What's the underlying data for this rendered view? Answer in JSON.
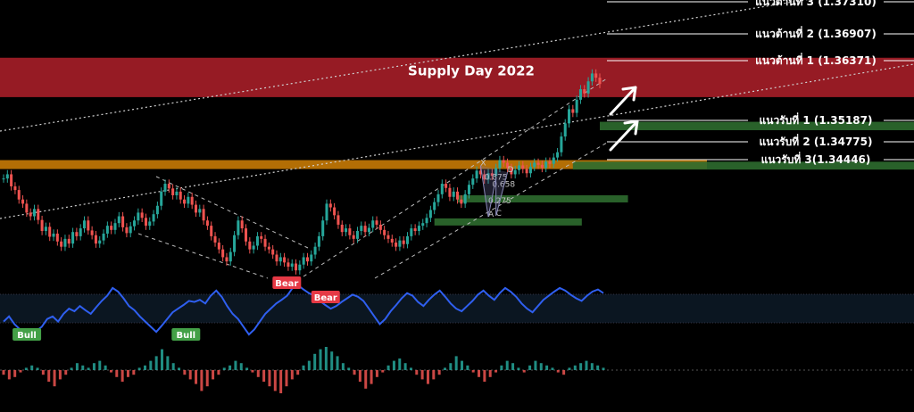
{
  "chart_data": {
    "type": "line",
    "symbol_note": "",
    "supply_zone": {
      "label": "Supply Day  2022",
      "from": 1.3575,
      "to": 1.3625,
      "color": "#b0202a"
    },
    "orange_zone": {
      "from": 1.3441,
      "to": 1.3455,
      "color": "#c77a06"
    },
    "demand_zones": [
      {
        "from": 1.3512,
        "to": 1.3528,
        "start": 155,
        "end": 200,
        "color": "#2d6b2f"
      },
      {
        "from": 1.3437,
        "to": 1.3452,
        "start": 148,
        "end": 200,
        "color": "#2d6b2f"
      },
      {
        "from": 1.3376,
        "to": 1.3388,
        "start": 118,
        "end": 160,
        "color": "#2d6b2f"
      },
      {
        "from": 1.3332,
        "to": 1.3344,
        "start": 112,
        "end": 148,
        "color": "#2d6b2f"
      }
    ],
    "resistance_levels": [
      {
        "label": "แนวต้านที่ 3 (1.37310)",
        "value": 1.3731
      },
      {
        "label": "แนวต้านที่ 2 (1.36907)",
        "value": 1.36907
      },
      {
        "label": "แนวต้านที่ 1 (1.36371)",
        "value": 1.36371
      }
    ],
    "support_levels": [
      {
        "label": "แนวรับที่ 1 (1.35187)",
        "value": 1.35187
      },
      {
        "label": "แนวรับที่ 2 (1.34775)",
        "value": 1.34775
      },
      {
        "label": "แนวรับที่ 3(1.34446)",
        "value": 1.34446
      }
    ],
    "price_series": [
      1.342,
      1.3428,
      1.3405,
      1.3398,
      1.338,
      1.3372,
      1.3355,
      1.3348,
      1.3362,
      1.3341,
      1.332,
      1.3328,
      1.3309,
      1.3315,
      1.33,
      1.329,
      1.3305,
      1.3296,
      1.3318,
      1.331,
      1.3325,
      1.334,
      1.3321,
      1.3312,
      1.3296,
      1.3302,
      1.3315,
      1.333,
      1.3322,
      1.3335,
      1.3348,
      1.3327,
      1.3316,
      1.3329,
      1.334,
      1.3355,
      1.3345,
      1.333,
      1.3338,
      1.3352,
      1.3368,
      1.3395,
      1.341,
      1.3401,
      1.3388,
      1.3395,
      1.338,
      1.3372,
      1.3385,
      1.337,
      1.3355,
      1.3362,
      1.334,
      1.333,
      1.331,
      1.3298,
      1.3285,
      1.327,
      1.3262,
      1.328,
      1.3312,
      1.334,
      1.3325,
      1.33,
      1.3285,
      1.3292,
      1.331,
      1.3305,
      1.329,
      1.3285,
      1.3275,
      1.3262,
      1.327,
      1.326,
      1.3252,
      1.3258,
      1.3245,
      1.3256,
      1.327,
      1.3262,
      1.3275,
      1.329,
      1.331,
      1.334,
      1.3372,
      1.3365,
      1.335,
      1.3332,
      1.3318,
      1.3325,
      1.3312,
      1.3305,
      1.332,
      1.333,
      1.3318,
      1.3326,
      1.334,
      1.3332,
      1.3322,
      1.3312,
      1.3305,
      1.3298,
      1.329,
      1.3302,
      1.3295,
      1.331,
      1.3325,
      1.332,
      1.333,
      1.3335,
      1.3345,
      1.336,
      1.3375,
      1.339,
      1.341,
      1.3402,
      1.3385,
      1.3395,
      1.338,
      1.3372,
      1.339,
      1.3408,
      1.342,
      1.3435,
      1.3428,
      1.3418,
      1.343,
      1.3425,
      1.344,
      1.3455,
      1.345,
      1.344,
      1.3428,
      1.3436,
      1.3445,
      1.3438,
      1.343,
      1.3442,
      1.345,
      1.3446,
      1.344,
      1.3452,
      1.3448,
      1.346,
      1.347,
      1.35,
      1.3525,
      1.3552,
      1.3545,
      1.357,
      1.359,
      1.3582,
      1.3605,
      1.362,
      1.3612,
      1.36
    ],
    "price_ylim": [
      1.323,
      1.376
    ],
    "indicator_series": [
      0.3,
      0.4,
      0.25,
      0.15,
      0.1,
      0.05,
      0.12,
      0.2,
      0.35,
      0.4,
      0.3,
      0.45,
      0.55,
      0.5,
      0.6,
      0.52,
      0.45,
      0.58,
      0.7,
      0.8,
      0.95,
      0.88,
      0.75,
      0.6,
      0.52,
      0.4,
      0.3,
      0.2,
      0.1,
      0.22,
      0.35,
      0.48,
      0.55,
      0.62,
      0.7,
      0.68,
      0.72,
      0.65,
      0.8,
      0.9,
      0.78,
      0.6,
      0.45,
      0.35,
      0.2,
      0.05,
      0.15,
      0.3,
      0.45,
      0.55,
      0.65,
      0.72,
      0.8,
      0.95,
      1.0,
      0.92,
      0.85,
      0.8,
      0.7,
      0.62,
      0.55,
      0.6,
      0.68,
      0.75,
      0.82,
      0.78,
      0.7,
      0.55,
      0.4,
      0.25,
      0.35,
      0.5,
      0.62,
      0.75,
      0.85,
      0.8,
      0.68,
      0.6,
      0.72,
      0.82,
      0.9,
      0.78,
      0.65,
      0.55,
      0.5,
      0.6,
      0.7,
      0.82,
      0.9,
      0.8,
      0.72,
      0.85,
      0.95,
      0.88,
      0.78,
      0.65,
      0.55,
      0.48,
      0.6,
      0.72,
      0.8,
      0.88,
      0.95,
      0.9,
      0.82,
      0.75,
      0.7,
      0.8,
      0.88,
      0.92,
      0.85
    ],
    "indicator_ylim": [
      0,
      1
    ],
    "histogram_series": [
      -0.2,
      -0.4,
      -0.3,
      -0.1,
      0.1,
      0.2,
      0.1,
      -0.2,
      -0.5,
      -0.7,
      -0.4,
      -0.2,
      0.1,
      0.3,
      0.2,
      0.1,
      0.3,
      0.4,
      0.2,
      -0.1,
      -0.3,
      -0.5,
      -0.3,
      -0.2,
      0.1,
      0.2,
      0.4,
      0.6,
      0.9,
      0.6,
      0.3,
      0.1,
      -0.2,
      -0.4,
      -0.6,
      -0.9,
      -0.7,
      -0.4,
      -0.2,
      0.1,
      0.2,
      0.4,
      0.3,
      0.1,
      -0.1,
      -0.3,
      -0.5,
      -0.7,
      -0.9,
      -1.0,
      -0.7,
      -0.4,
      -0.2,
      0.2,
      0.4,
      0.7,
      0.9,
      1.0,
      0.8,
      0.6,
      0.3,
      0.1,
      -0.2,
      -0.5,
      -0.8,
      -0.6,
      -0.3,
      -0.1,
      0.2,
      0.4,
      0.5,
      0.3,
      0.1,
      -0.2,
      -0.4,
      -0.6,
      -0.4,
      -0.2,
      0.1,
      0.3,
      0.6,
      0.4,
      0.2,
      -0.1,
      -0.3,
      -0.5,
      -0.3,
      -0.1,
      0.2,
      0.4,
      0.3,
      0.1,
      -0.1,
      0.2,
      0.4,
      0.3,
      0.2,
      0.1,
      -0.1,
      -0.2,
      0.1,
      0.2,
      0.3,
      0.4,
      0.3,
      0.2,
      0.1
    ],
    "bull_badges": [
      {
        "label": "Bull",
        "at": 6
      },
      {
        "label": "Bull",
        "at": 47
      }
    ],
    "bear_badges": [
      {
        "label": "Bear",
        "at": 73
      },
      {
        "label": "Bear",
        "at": 83
      }
    ],
    "xabcd_labels": [
      {
        "label": "X",
        "at": 124,
        "value": 1.3445
      },
      {
        "label": "D",
        "at": 131,
        "value": 1.3432
      },
      {
        "label": "0.875",
        "at": 125,
        "value": 1.3418
      },
      {
        "label": "0.658",
        "at": 127,
        "value": 1.3404
      },
      {
        "label": "0.275",
        "at": 126,
        "value": 1.3373
      },
      {
        "label": "A",
        "at": 126,
        "value": 1.3347
      },
      {
        "label": "C",
        "at": 128,
        "value": 1.3349
      }
    ],
    "colors": {
      "up": "#26a69a",
      "down": "#ef5350",
      "indicator": "#2f5ff0",
      "badge_bull": "#43a047",
      "badge_bear": "#e53945",
      "level_line": "#ffffff",
      "orange_zone": "#c77a06",
      "supply": "#b0202a",
      "demand": "#2d6b2f"
    }
  }
}
